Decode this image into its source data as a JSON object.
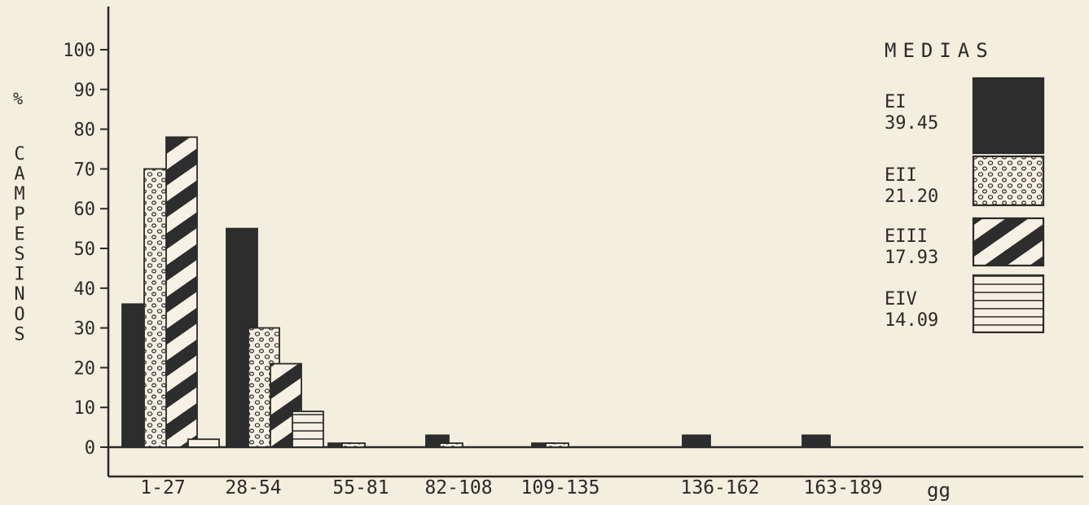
{
  "colors": {
    "background": "#f3eede",
    "ink": "#2a2a2a",
    "fill_dark": "#2d2d2d",
    "fill_light": "#f6f1e4"
  },
  "chart_data": {
    "type": "bar",
    "ylabel_prefix": "%",
    "ylabel": "CAMPESINOS",
    "xlabel": "gg",
    "ylim": [
      0,
      100
    ],
    "yticks": [
      0,
      10,
      20,
      30,
      40,
      50,
      60,
      70,
      80,
      90,
      100
    ],
    "categories": [
      "1-27",
      "28-54",
      "55-81",
      "82-108",
      "109-135",
      "136-162",
      "163-189"
    ],
    "legend_title": "MEDIAS",
    "legend_position": "top-right",
    "series": [
      {
        "name": "EI",
        "legend_value": "39.45",
        "pattern": "solid",
        "values": [
          36,
          55,
          1,
          3,
          1,
          3,
          3
        ]
      },
      {
        "name": "EII",
        "legend_value": "21.20",
        "pattern": "dots",
        "values": [
          70,
          30,
          1,
          1,
          1,
          0,
          0
        ]
      },
      {
        "name": "EIII",
        "legend_value": "17.93",
        "pattern": "diagonal-stripes",
        "values": [
          78,
          21,
          0,
          0,
          0,
          0,
          0
        ]
      },
      {
        "name": "EIV",
        "legend_value": "14.09",
        "pattern": "horizontal-lines",
        "values": [
          2,
          9,
          0,
          0,
          0,
          0,
          0
        ]
      }
    ]
  }
}
